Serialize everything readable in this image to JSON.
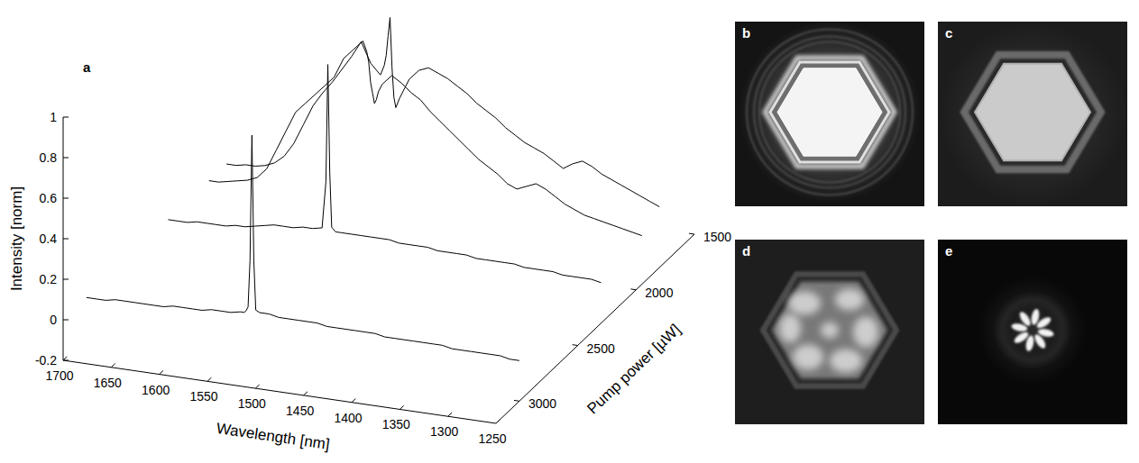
{
  "chart_data": {
    "type": "waterfall",
    "panel_label": "a",
    "xlabel": "Wavelength [nm]",
    "ylabel": "Intensity [norm]",
    "zlabel": "Pump power [µW]",
    "xlim": [
      1250,
      1700
    ],
    "xticks": [
      1250,
      1300,
      1350,
      1400,
      1450,
      1500,
      1550,
      1600,
      1650,
      1700
    ],
    "ylim": [
      -0.2,
      1
    ],
    "yticks": [
      -0.2,
      0,
      0.2,
      0.4,
      0.6,
      0.8,
      1
    ],
    "zlim": [
      1500,
      3200
    ],
    "zticks": [
      1500,
      2000,
      2500,
      3000
    ],
    "x": [
      1250,
      1260,
      1270,
      1280,
      1290,
      1300,
      1310,
      1320,
      1330,
      1340,
      1350,
      1360,
      1370,
      1380,
      1390,
      1400,
      1410,
      1420,
      1430,
      1440,
      1450,
      1460,
      1470,
      1480,
      1490,
      1500,
      1510,
      1520,
      1524,
      1526,
      1528,
      1530,
      1532,
      1534,
      1536,
      1540,
      1550,
      1560,
      1570,
      1580,
      1590,
      1600,
      1610,
      1620,
      1630,
      1640,
      1650,
      1660,
      1670,
      1680,
      1690,
      1700
    ],
    "series": [
      {
        "pump_power": 3000,
        "color": "#000000",
        "values": [
          0.0,
          0.0,
          0.01,
          0.01,
          0.01,
          0.01,
          0.01,
          0.01,
          0.02,
          0.02,
          0.02,
          0.02,
          0.02,
          0.02,
          0.02,
          0.03,
          0.03,
          0.03,
          0.03,
          0.03,
          0.03,
          0.04,
          0.04,
          0.04,
          0.04,
          0.04,
          0.05,
          0.05,
          0.06,
          0.3,
          0.92,
          0.3,
          0.07,
          0.05,
          0.04,
          0.04,
          0.03,
          0.03,
          0.03,
          0.02,
          0.02,
          0.02,
          0.02,
          0.01,
          0.01,
          0.01,
          0.01,
          0.01,
          0.01,
          0.0,
          0.0,
          0.0
        ]
      },
      {
        "pump_power": 2300,
        "color": "#000000",
        "values": [
          0.0,
          0.01,
          0.01,
          0.01,
          0.01,
          0.02,
          0.02,
          0.02,
          0.02,
          0.03,
          0.03,
          0.03,
          0.03,
          0.03,
          0.04,
          0.04,
          0.04,
          0.04,
          0.05,
          0.05,
          0.05,
          0.05,
          0.06,
          0.06,
          0.06,
          0.06,
          0.06,
          0.06,
          0.06,
          0.06,
          0.07,
          0.08,
          0.35,
          0.88,
          0.3,
          0.07,
          0.06,
          0.06,
          0.05,
          0.05,
          0.05,
          0.04,
          0.03,
          0.02,
          0.02,
          0.01,
          0.01,
          0.01,
          0.01,
          0.0,
          0.0,
          0.0
        ]
      },
      {
        "pump_power": 1950,
        "color": "#000000",
        "values": [
          0.04,
          0.05,
          0.06,
          0.07,
          0.08,
          0.09,
          0.1,
          0.12,
          0.14,
          0.17,
          0.2,
          0.22,
          0.2,
          0.18,
          0.2,
          0.24,
          0.27,
          0.3,
          0.34,
          0.38,
          0.42,
          0.46,
          0.5,
          0.55,
          0.58,
          0.62,
          0.65,
          0.6,
          0.56,
          0.52,
          0.5,
          0.55,
          0.6,
          0.7,
          0.75,
          0.8,
          0.75,
          0.7,
          0.6,
          0.55,
          0.5,
          0.45,
          0.4,
          0.3,
          0.2,
          0.1,
          0.05,
          0.03,
          0.02,
          0.01,
          0.0,
          0.0
        ]
      },
      {
        "pump_power": 1800,
        "color": "#000000",
        "values": [
          0.1,
          0.12,
          0.14,
          0.16,
          0.18,
          0.2,
          0.22,
          0.25,
          0.27,
          0.25,
          0.22,
          0.25,
          0.28,
          0.3,
          0.32,
          0.35,
          0.38,
          0.42,
          0.45,
          0.48,
          0.52,
          0.55,
          0.58,
          0.6,
          0.62,
          0.6,
          0.55,
          0.45,
          0.4,
          0.45,
          0.6,
          0.84,
          0.75,
          0.65,
          0.6,
          0.55,
          0.6,
          0.7,
          0.62,
          0.55,
          0.48,
          0.42,
          0.35,
          0.25,
          0.15,
          0.08,
          0.04,
          0.02,
          0.01,
          0.01,
          0.0,
          0.0
        ]
      }
    ]
  },
  "images": [
    {
      "label": "b"
    },
    {
      "label": "c"
    },
    {
      "label": "d"
    },
    {
      "label": "e"
    }
  ]
}
